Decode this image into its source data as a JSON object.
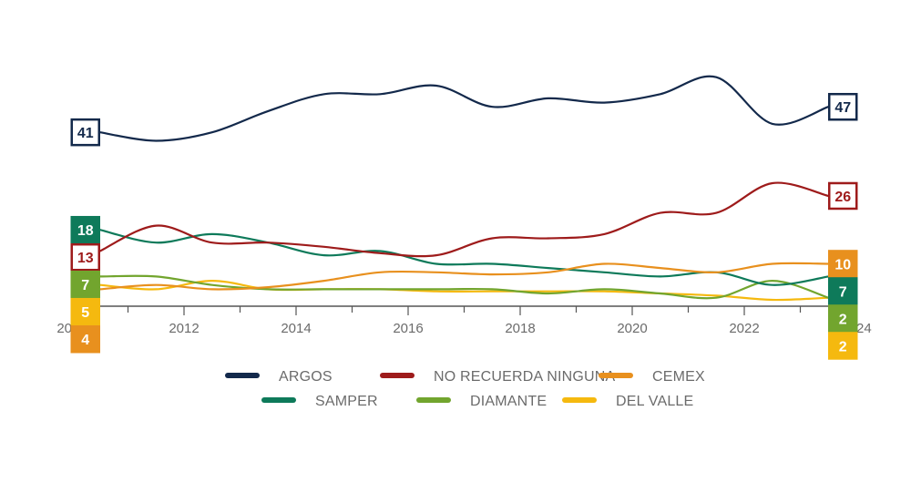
{
  "chart_data": {
    "type": "line",
    "x": [
      2010.5,
      2011.5,
      2012.5,
      2013.5,
      2014.5,
      2015.5,
      2016.5,
      2017.5,
      2018.5,
      2019.5,
      2020.5,
      2021.5,
      2022.5,
      2023.5
    ],
    "xlim": [
      2010,
      2024
    ],
    "ylim": [
      0,
      55
    ],
    "x_ticks": [
      "2010",
      "2012",
      "2014",
      "2016",
      "2018",
      "2020",
      "2022",
      "2024"
    ],
    "x_tick_values": [
      2010,
      2012,
      2014,
      2016,
      2018,
      2020,
      2022,
      2024
    ],
    "legend_position": "bottom",
    "series": [
      {
        "name": "ARGOS",
        "color": "#13294b",
        "fill": false,
        "text_color": "#13294b",
        "values": [
          41,
          39,
          41,
          46,
          50,
          50,
          52,
          47,
          49,
          48,
          50,
          54,
          43,
          47
        ],
        "start_label": "41",
        "end_label": "47"
      },
      {
        "name": "NO RECUERDA NINGUNA",
        "color": "#9e1b1b",
        "fill": false,
        "text_color": "#9e1b1b",
        "values": [
          13,
          19,
          15,
          15,
          14,
          12.5,
          12,
          16,
          16,
          17,
          22,
          22,
          29,
          26
        ],
        "start_label": "13",
        "end_label": "26"
      },
      {
        "name": "CEMEX",
        "color": "#e8901e",
        "fill": true,
        "text_color": "#ffffff",
        "values": [
          4,
          5,
          4,
          4.5,
          6,
          8,
          8,
          7.5,
          8,
          10,
          9,
          8,
          10,
          10
        ],
        "start_label": "4",
        "end_label": "10"
      },
      {
        "name": "SAMPER",
        "color": "#0e7a5a",
        "fill": true,
        "text_color": "#ffffff",
        "values": [
          18,
          15,
          17,
          15,
          12,
          13,
          10,
          10,
          9,
          8,
          7,
          8,
          5,
          7
        ],
        "start_label": "18",
        "end_label": "7"
      },
      {
        "name": "DIAMANTE",
        "color": "#72a52e",
        "fill": true,
        "text_color": "#ffffff",
        "values": [
          7,
          7,
          5,
          4,
          4,
          4,
          4,
          4,
          3,
          4,
          3,
          2,
          6,
          2
        ],
        "start_label": "7",
        "end_label": "2"
      },
      {
        "name": "DEL VALLE",
        "color": "#f5b90f",
        "fill": true,
        "text_color": "#ffffff",
        "values": [
          5,
          4,
          6,
          4,
          4,
          4,
          3.5,
          3.5,
          3.5,
          3.5,
          3,
          2.5,
          1.5,
          2
        ],
        "start_label": "5",
        "end_label": "2"
      }
    ]
  }
}
